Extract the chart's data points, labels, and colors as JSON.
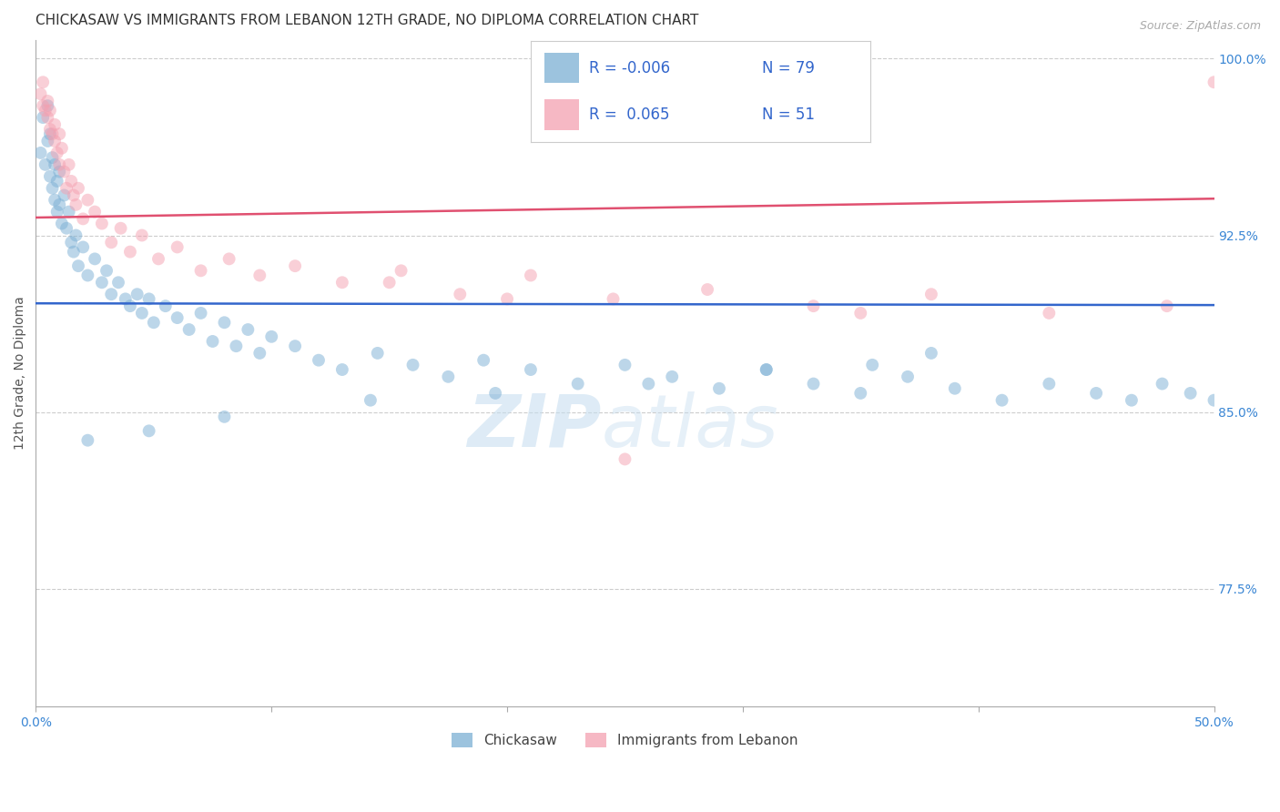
{
  "title": "CHICKASAW VS IMMIGRANTS FROM LEBANON 12TH GRADE, NO DIPLOMA CORRELATION CHART",
  "source": "Source: ZipAtlas.com",
  "ylabel": "12th Grade, No Diploma",
  "x_min": 0.0,
  "x_max": 0.5,
  "y_min": 0.725,
  "y_max": 1.008,
  "y_ticks_right": [
    0.775,
    0.85,
    0.925,
    1.0
  ],
  "y_tick_labels_right": [
    "77.5%",
    "85.0%",
    "92.5%",
    "100.0%"
  ],
  "grid_color": "#cccccc",
  "background_color": "#ffffff",
  "chickasaw_color": "#7bafd4",
  "lebanon_color": "#f4a0b0",
  "chickasaw_line_color": "#3366cc",
  "lebanon_line_color": "#e05070",
  "R_chickasaw": -0.006,
  "N_chickasaw": 79,
  "R_lebanon": 0.065,
  "N_lebanon": 51,
  "chickasaw_x": [
    0.002,
    0.003,
    0.004,
    0.005,
    0.005,
    0.006,
    0.006,
    0.007,
    0.007,
    0.008,
    0.008,
    0.009,
    0.009,
    0.01,
    0.01,
    0.011,
    0.012,
    0.013,
    0.014,
    0.015,
    0.016,
    0.017,
    0.018,
    0.02,
    0.022,
    0.025,
    0.028,
    0.03,
    0.032,
    0.035,
    0.038,
    0.04,
    0.043,
    0.045,
    0.048,
    0.05,
    0.055,
    0.06,
    0.065,
    0.07,
    0.075,
    0.08,
    0.085,
    0.09,
    0.095,
    0.1,
    0.11,
    0.12,
    0.13,
    0.145,
    0.16,
    0.175,
    0.19,
    0.21,
    0.23,
    0.25,
    0.27,
    0.29,
    0.31,
    0.33,
    0.35,
    0.37,
    0.39,
    0.41,
    0.43,
    0.45,
    0.465,
    0.478,
    0.49,
    0.5,
    0.355,
    0.38,
    0.31,
    0.26,
    0.195,
    0.142,
    0.08,
    0.048,
    0.022
  ],
  "chickasaw_y": [
    0.96,
    0.975,
    0.955,
    0.98,
    0.965,
    0.95,
    0.968,
    0.945,
    0.958,
    0.94,
    0.955,
    0.935,
    0.948,
    0.938,
    0.952,
    0.93,
    0.942,
    0.928,
    0.935,
    0.922,
    0.918,
    0.925,
    0.912,
    0.92,
    0.908,
    0.915,
    0.905,
    0.91,
    0.9,
    0.905,
    0.898,
    0.895,
    0.9,
    0.892,
    0.898,
    0.888,
    0.895,
    0.89,
    0.885,
    0.892,
    0.88,
    0.888,
    0.878,
    0.885,
    0.875,
    0.882,
    0.878,
    0.872,
    0.868,
    0.875,
    0.87,
    0.865,
    0.872,
    0.868,
    0.862,
    0.87,
    0.865,
    0.86,
    0.868,
    0.862,
    0.858,
    0.865,
    0.86,
    0.855,
    0.862,
    0.858,
    0.855,
    0.862,
    0.858,
    0.855,
    0.87,
    0.875,
    0.868,
    0.862,
    0.858,
    0.855,
    0.848,
    0.842,
    0.838
  ],
  "lebanon_x": [
    0.002,
    0.003,
    0.003,
    0.004,
    0.005,
    0.005,
    0.006,
    0.006,
    0.007,
    0.008,
    0.008,
    0.009,
    0.01,
    0.01,
    0.011,
    0.012,
    0.013,
    0.014,
    0.015,
    0.016,
    0.017,
    0.018,
    0.02,
    0.022,
    0.025,
    0.028,
    0.032,
    0.036,
    0.04,
    0.045,
    0.052,
    0.06,
    0.07,
    0.082,
    0.095,
    0.11,
    0.13,
    0.155,
    0.18,
    0.21,
    0.245,
    0.285,
    0.33,
    0.38,
    0.43,
    0.48,
    0.5,
    0.15,
    0.2,
    0.35,
    0.25
  ],
  "lebanon_y": [
    0.985,
    0.99,
    0.98,
    0.978,
    0.982,
    0.975,
    0.97,
    0.978,
    0.968,
    0.972,
    0.965,
    0.96,
    0.968,
    0.955,
    0.962,
    0.952,
    0.945,
    0.955,
    0.948,
    0.942,
    0.938,
    0.945,
    0.932,
    0.94,
    0.935,
    0.93,
    0.922,
    0.928,
    0.918,
    0.925,
    0.915,
    0.92,
    0.91,
    0.915,
    0.908,
    0.912,
    0.905,
    0.91,
    0.9,
    0.908,
    0.898,
    0.902,
    0.895,
    0.9,
    0.892,
    0.895,
    0.99,
    0.905,
    0.898,
    0.892,
    0.83
  ],
  "watermark_zip": "ZIP",
  "watermark_atlas": "atlas",
  "marker_size": 100,
  "marker_alpha": 0.5,
  "title_fontsize": 11,
  "axis_label_fontsize": 10,
  "tick_fontsize": 10,
  "legend_fontsize": 12
}
